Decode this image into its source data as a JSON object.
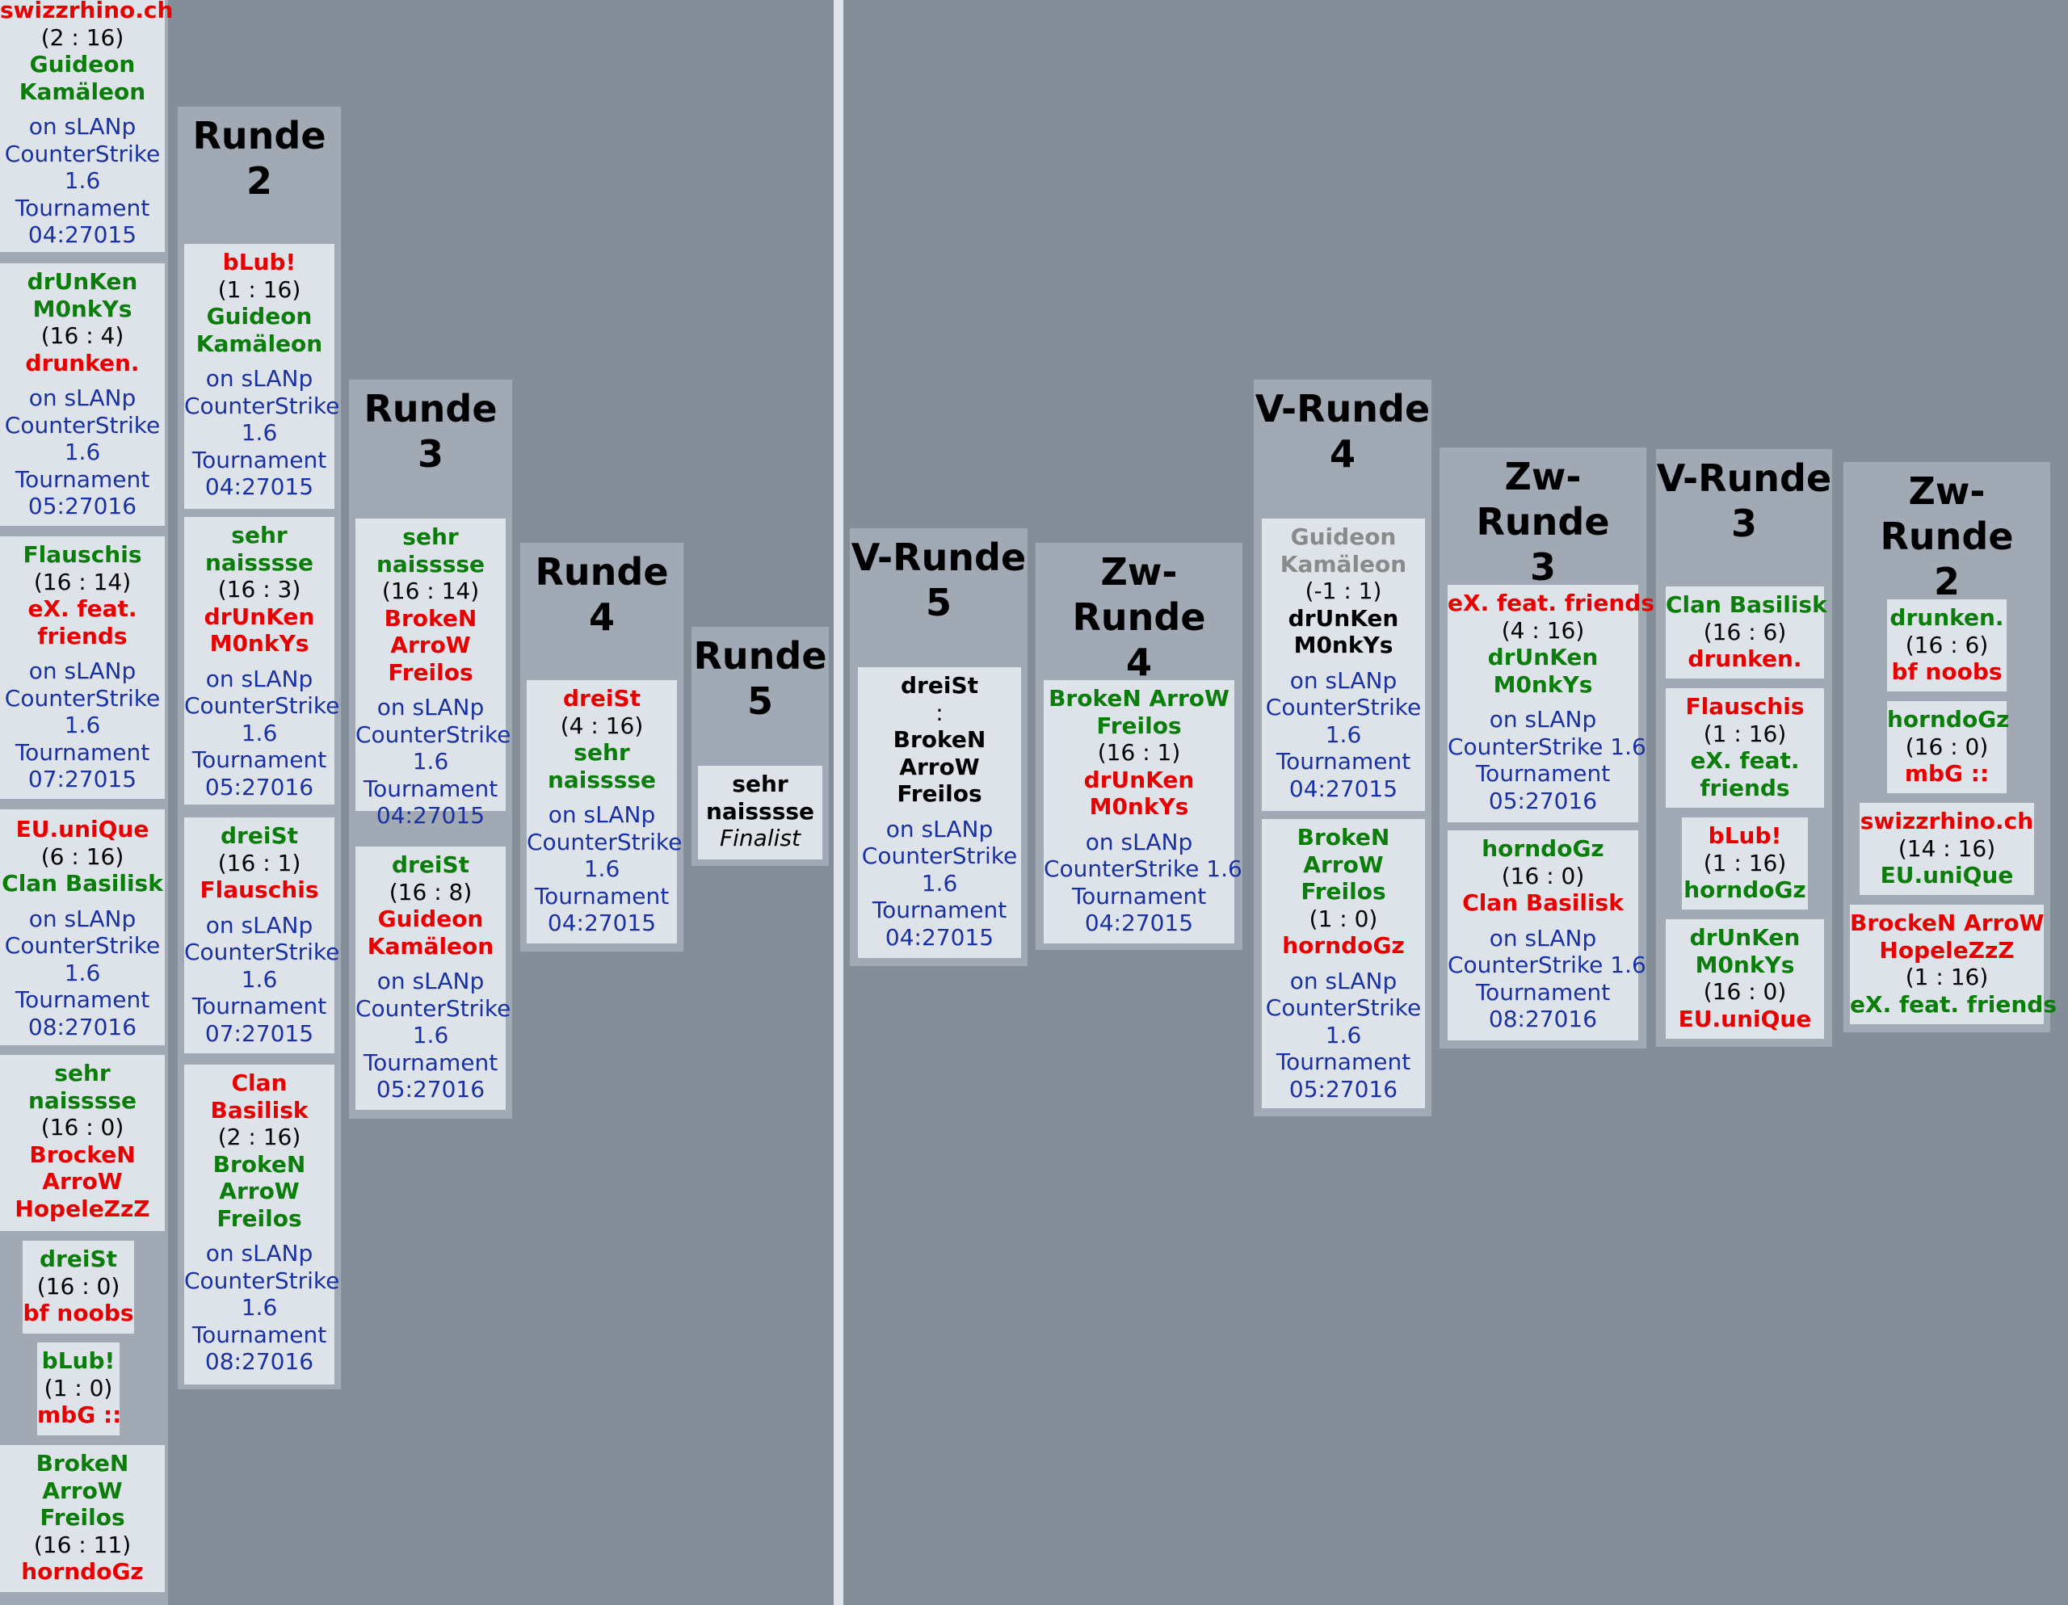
{
  "rounds": {
    "r2": "Runde 2",
    "r3": "Runde 3",
    "r4": "Runde 4",
    "r5": "Runde 5",
    "v5": "V-Runde 5",
    "zw4": "Zw-Runde 4",
    "v4": "V-Runde 4",
    "zw3": "Zw-Runde 3",
    "v3": "V-Runde 3",
    "zw2": "Zw-Runde 2"
  },
  "title_parts": {
    "r2": [
      "Runde",
      "2"
    ],
    "r3": [
      "Runde",
      "3"
    ],
    "r4": [
      "Runde",
      "4"
    ],
    "r5": [
      "Runde",
      "5"
    ],
    "v5": [
      "V-Runde",
      "5"
    ],
    "zw4": [
      "Zw-Runde",
      "4"
    ],
    "v4": [
      "V-Runde",
      "4"
    ],
    "zw3": [
      "Zw-Runde",
      "3"
    ],
    "v3": [
      "V-Runde",
      "3"
    ],
    "zw2": [
      "Zw-Runde",
      "2"
    ]
  },
  "common": {
    "on": "on sLANp",
    "game": "CounterStrike",
    "ver": "1.6",
    "game_ver": "CounterStrike 1.6",
    "tournament": "Tournament",
    "finalist": "Finalist"
  },
  "matches": {
    "c1m1": {
      "a": "swizzrhino.ch",
      "score": "(2 : 16)",
      "b1": "Guideon",
      "b2": "Kamäleon",
      "time": "04:27015"
    },
    "c1m2": {
      "a1": "drUnKen",
      "a2": "M0nkYs",
      "score": "(16 : 4)",
      "b": "drunken.",
      "time": "05:27016"
    },
    "c1m3": {
      "a": "Flauschis",
      "score": "(16 : 14)",
      "b1": "eX. feat.",
      "b2": "friends",
      "time": "07:27015"
    },
    "c1m4": {
      "a": "EU.uniQue",
      "score": "(6 : 16)",
      "b": "Clan Basilisk",
      "time": "08:27016"
    },
    "c1m5": {
      "a1": "sehr",
      "a2": "naisssse",
      "score": "(16 : 0)",
      "b1": "BrockeN",
      "b2": "ArroW",
      "b3": "HopeleZzZ"
    },
    "c1m6": {
      "a": "dreiSt",
      "score": "(16 : 0)",
      "b": "bf noobs"
    },
    "c1m7": {
      "a": "bLub!",
      "score": "(1 : 0)",
      "b": "mbG ::"
    },
    "c1m8": {
      "a1": "BrokeN",
      "a2": "ArroW",
      "a3": "Freilos",
      "score": "(16 : 11)",
      "b": "horndoGz"
    },
    "c2m1": {
      "a": "bLub!",
      "score": "(1 : 16)",
      "b1": "Guideon",
      "b2": "Kamäleon",
      "time": "04:27015"
    },
    "c2m2": {
      "a1": "sehr",
      "a2": "naisssse",
      "score": "(16 : 3)",
      "b1": "drUnKen",
      "b2": "M0nkYs",
      "time": "05:27016"
    },
    "c2m3": {
      "a": "dreiSt",
      "score": "(16 : 1)",
      "b": "Flauschis",
      "time": "07:27015"
    },
    "c2m4": {
      "a1": "Clan",
      "a2": "Basilisk",
      "score": "(2 : 16)",
      "b1": "BrokeN",
      "b2": "ArroW",
      "b3": "Freilos",
      "time": "08:27016"
    },
    "c3m1": {
      "a1": "sehr",
      "a2": "naisssse",
      "score": "(16 : 14)",
      "b1": "BrokeN",
      "b2": "ArroW",
      "b3": "Freilos",
      "time": "04:27015"
    },
    "c3m2": {
      "a": "dreiSt",
      "score": "(16 : 8)",
      "b1": "Guideon",
      "b2": "Kamäleon",
      "time": "05:27016"
    },
    "c4m1": {
      "a": "dreiSt",
      "score": "(4 : 16)",
      "b1": "sehr",
      "b2": "naisssse",
      "time": "04:27015"
    },
    "c5m1": {
      "a1": "sehr",
      "a2": "naisssse"
    },
    "c6m1": {
      "a": "dreiSt",
      "sep": ":",
      "b1": "BrokeN",
      "b2": "ArroW",
      "b3": "Freilos",
      "time": "04:27015"
    },
    "c7m1": {
      "a1": "BrokeN ArroW",
      "a2": "Freilos",
      "score": "(16 : 1)",
      "b1": "drUnKen",
      "b2": "M0nkYs",
      "time": "04:27015"
    },
    "c8m1": {
      "a1": "Guideon",
      "a2": "Kamäleon",
      "score": "(-1 : 1)",
      "b1": "drUnKen",
      "b2": "M0nkYs",
      "time": "04:27015"
    },
    "c8m2": {
      "a1": "BrokeN",
      "a2": "ArroW",
      "a3": "Freilos",
      "score": "(1 : 0)",
      "b": "horndoGz",
      "time": "05:27016"
    },
    "c9m1": {
      "a": "eX. feat. friends",
      "score": "(4 : 16)",
      "b1": "drUnKen",
      "b2": "M0nkYs",
      "time": "05:27016"
    },
    "c9m2": {
      "a": "horndoGz",
      "score": "(16 : 0)",
      "b": "Clan Basilisk",
      "time": "08:27016"
    },
    "c10m1": {
      "a": "Clan Basilisk",
      "score": "(16 : 6)",
      "b": "drunken."
    },
    "c10m2": {
      "a": "Flauschis",
      "score": "(1 : 16)",
      "b1": "eX. feat.",
      "b2": "friends"
    },
    "c10m3": {
      "a": "bLub!",
      "score": "(1 : 16)",
      "b": "horndoGz"
    },
    "c10m4": {
      "a1": "drUnKen",
      "a2": "M0nkYs",
      "score": "(16 : 0)",
      "b": "EU.uniQue"
    },
    "c11m1": {
      "a": "drunken.",
      "score": "(16 : 6)",
      "b": "bf noobs"
    },
    "c11m2": {
      "a": "horndoGz",
      "score": "(16 : 0)",
      "b": "mbG ::"
    },
    "c11m3": {
      "a": "swizzrhino.ch",
      "score": "(14 : 16)",
      "b": "EU.uniQue"
    },
    "c11m4": {
      "a1": "BrockeN ArroW",
      "a2": "HopeleZzZ",
      "score": "(1 : 16)",
      "b": "eX. feat. friends"
    }
  },
  "colors": {
    "background": "#848e99",
    "column": "#a1aab4",
    "match": "#dee3ea",
    "winner": "#0b7d0b",
    "loser": "#e60000",
    "info": "#1a32a0"
  }
}
